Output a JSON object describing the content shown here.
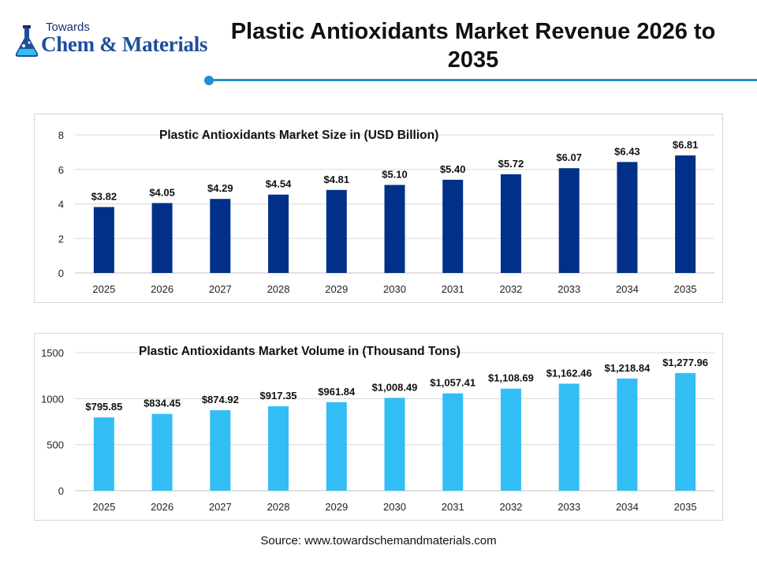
{
  "logo": {
    "small_text": "Towards",
    "brand_text": "Chem & Materials",
    "icon": "flask-icon"
  },
  "header": {
    "title": "Plastic Antioxidants Market Revenue 2026 to 2035"
  },
  "colors": {
    "accent": "#1e8fd1",
    "bar_revenue": "#003087",
    "bar_volume": "#33bdf5",
    "logo_blue": "#1f4f9c"
  },
  "chart_data": [
    {
      "type": "bar",
      "title": "Plastic Antioxidants Market Size in (USD Billion)",
      "xlabel": "",
      "ylabel": "",
      "categories": [
        "2025",
        "2026",
        "2027",
        "2028",
        "2029",
        "2030",
        "2031",
        "2032",
        "2033",
        "2034",
        "2035"
      ],
      "values": [
        3.82,
        4.05,
        4.29,
        4.54,
        4.81,
        5.1,
        5.4,
        5.72,
        6.07,
        6.43,
        6.81
      ],
      "data_labels": [
        "$3.82",
        "$4.05",
        "$4.29",
        "$4.54",
        "$4.81",
        "$5.10",
        "$5.40",
        "$5.72",
        "$6.07",
        "$6.43",
        "$6.81"
      ],
      "ylim": [
        0,
        8
      ],
      "yticks": [
        "0",
        "2",
        "4",
        "6",
        "8"
      ],
      "grid": true,
      "legend": "none"
    },
    {
      "type": "bar",
      "title": "Plastic Antioxidants Market Volume in (Thousand Tons)",
      "xlabel": "",
      "ylabel": "",
      "categories": [
        "2025",
        "2026",
        "2027",
        "2028",
        "2029",
        "2030",
        "2031",
        "2032",
        "2033",
        "2034",
        "2035"
      ],
      "values": [
        795.85,
        834.45,
        874.92,
        917.35,
        961.84,
        1008.49,
        1057.41,
        1108.69,
        1162.46,
        1218.84,
        1277.96
      ],
      "data_labels": [
        "$795.85",
        "$834.45",
        "$874.92",
        "$917.35",
        "$961.84",
        "$1,008.49",
        "$1,057.41",
        "$1,108.69",
        "$1,162.46",
        "$1,218.84",
        "$1,277.96"
      ],
      "ylim": [
        0,
        1500
      ],
      "yticks": [
        "0",
        "500",
        "1000",
        "1500"
      ],
      "grid": true,
      "legend": "none"
    }
  ],
  "footer": {
    "source": "Source: www.towardschemandmaterials.com"
  }
}
